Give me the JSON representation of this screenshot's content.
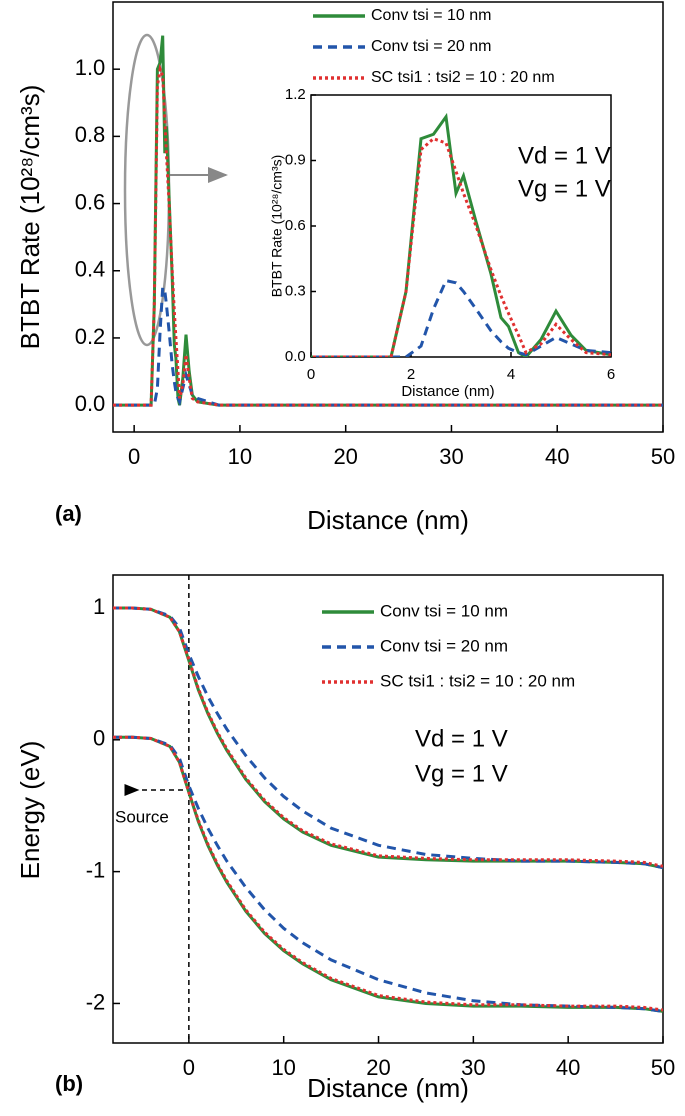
{
  "chart_data": [
    {
      "type": "line",
      "panel_label": "(a)",
      "xlabel": "Distance (nm)",
      "ylabel": "BTBT Rate (10²⁸/cm³s)",
      "xlim": [
        -2,
        50
      ],
      "ylim": [
        -0.08,
        1.2
      ],
      "xticks": [
        0,
        10,
        20,
        30,
        40,
        50
      ],
      "yticks": [
        {
          "value": 0,
          "label": "0.0"
        },
        0.2,
        0.4,
        0.6,
        0.8,
        {
          "value": 1,
          "label": "1.0"
        }
      ],
      "x": [
        -2,
        1.6,
        1.9,
        2.2,
        2.45,
        2.7,
        2.9,
        3.05,
        3.3,
        3.6,
        3.8,
        3.95,
        4.15,
        4.3,
        4.6,
        4.9,
        5.2,
        5.5,
        6,
        8,
        50
      ],
      "series": [
        {
          "name": "Conv tsi =  10 nm",
          "color": "#2e8b3a",
          "linestyle": "solid",
          "values": [
            0,
            0,
            0.3,
            1.0,
            1.02,
            1.1,
            0.75,
            0.83,
            0.62,
            0.38,
            0.18,
            0.14,
            0.02,
            0,
            0.08,
            0.21,
            0.1,
            0.03,
            0.01,
            0,
            0
          ]
        },
        {
          "name": "Conv tsi =  20 nm",
          "color": "#2255aa",
          "linestyle": "dashed",
          "values": [
            0,
            0,
            0,
            0.05,
            0.22,
            0.35,
            0.34,
            0.3,
            0.22,
            0.12,
            0.07,
            0.04,
            0.02,
            0.01,
            0.05,
            0.09,
            0.06,
            0.03,
            0.02,
            0,
            0
          ]
        },
        {
          "name": "SC tsi1 : tsi2 =  10 : 20 nm",
          "color": "#e03030",
          "linestyle": "dotted",
          "values": [
            0,
            0,
            0.3,
            0.95,
            1.0,
            0.98,
            0.85,
            0.75,
            0.6,
            0.4,
            0.28,
            0.2,
            0.1,
            0.02,
            0.06,
            0.15,
            0.08,
            0.02,
            0.01,
            0,
            0
          ]
        }
      ],
      "annotations": [
        "Vd = 1 V",
        "Vg = 1 V"
      ]
    },
    {
      "type": "inset",
      "xlabel": "Distance (nm)",
      "ylabel": "BTBT Rate (10²⁸/cm³s)",
      "xlim": [
        0,
        6
      ],
      "ylim": [
        0,
        1.2
      ],
      "xticks": [
        0,
        2,
        4,
        6
      ],
      "yticks": [
        {
          "value": 0,
          "label": "0.0"
        },
        0.3,
        0.6,
        0.9,
        1.2
      ]
    },
    {
      "type": "band",
      "panel_label": "(b)",
      "xlabel": "Distance (nm)",
      "ylabel": "Energy (eV)",
      "xlim": [
        -8,
        50
      ],
      "ylim": [
        -2.3,
        1.25
      ],
      "xticks": [
        0,
        10,
        20,
        30,
        40,
        50
      ],
      "yticks": [
        -2,
        -1,
        0,
        1
      ],
      "x": [
        -8,
        -6,
        -4,
        -2,
        -1,
        0,
        1,
        2,
        3,
        4,
        6,
        8,
        10,
        12,
        15,
        20,
        25,
        30,
        35,
        40,
        45,
        48,
        50
      ],
      "series": [
        {
          "name": "Conv tsi =  10 nm",
          "color": "#2e8b3a",
          "linestyle": "solid",
          "values": [
            [
              1,
              1,
              0.99,
              0.93,
              0.82,
              0.6,
              0.38,
              0.2,
              0.05,
              -0.08,
              -0.3,
              -0.47,
              -0.6,
              -0.7,
              -0.8,
              -0.89,
              -0.91,
              -0.92,
              -0.92,
              -0.92,
              -0.93,
              -0.94,
              -0.97
            ],
            [
              0.02,
              0.02,
              0.01,
              -0.05,
              -0.17,
              -0.4,
              -0.62,
              -0.8,
              -0.95,
              -1.08,
              -1.3,
              -1.47,
              -1.6,
              -1.7,
              -1.82,
              -1.95,
              -2.0,
              -2.02,
              -2.02,
              -2.03,
              -2.03,
              -2.04,
              -2.06
            ]
          ]
        },
        {
          "name": "Conv tsi =  20 nm",
          "color": "#2255aa",
          "linestyle": "dashed",
          "values": [
            [
              1,
              1,
              0.99,
              0.94,
              0.85,
              0.65,
              0.48,
              0.33,
              0.2,
              0.08,
              -0.12,
              -0.29,
              -0.43,
              -0.54,
              -0.67,
              -0.8,
              -0.87,
              -0.9,
              -0.92,
              -0.92,
              -0.93,
              -0.94,
              -0.97
            ],
            [
              0.02,
              0.02,
              0.01,
              -0.04,
              -0.14,
              -0.35,
              -0.52,
              -0.67,
              -0.8,
              -0.92,
              -1.12,
              -1.29,
              -1.43,
              -1.54,
              -1.67,
              -1.82,
              -1.92,
              -1.98,
              -2.01,
              -2.02,
              -2.03,
              -2.04,
              -2.06
            ]
          ]
        },
        {
          "name": "SC tsi1 : tsi2 =  10 : 20 nm",
          "color": "#e03030",
          "linestyle": "dotted",
          "values": [
            [
              1,
              1,
              0.99,
              0.93,
              0.82,
              0.61,
              0.39,
              0.21,
              0.06,
              -0.07,
              -0.29,
              -0.46,
              -0.59,
              -0.69,
              -0.79,
              -0.88,
              -0.9,
              -0.91,
              -0.91,
              -0.91,
              -0.92,
              -0.93,
              -0.96
            ],
            [
              0.02,
              0.02,
              0.01,
              -0.05,
              -0.17,
              -0.4,
              -0.61,
              -0.79,
              -0.94,
              -1.07,
              -1.29,
              -1.46,
              -1.59,
              -1.69,
              -1.81,
              -1.94,
              -1.99,
              -2.01,
              -2.01,
              -2.02,
              -2.02,
              -2.03,
              -2.05
            ]
          ]
        }
      ],
      "annotations": [
        "Vd = 1 V",
        "Vg = 1 V",
        "Source"
      ]
    }
  ]
}
